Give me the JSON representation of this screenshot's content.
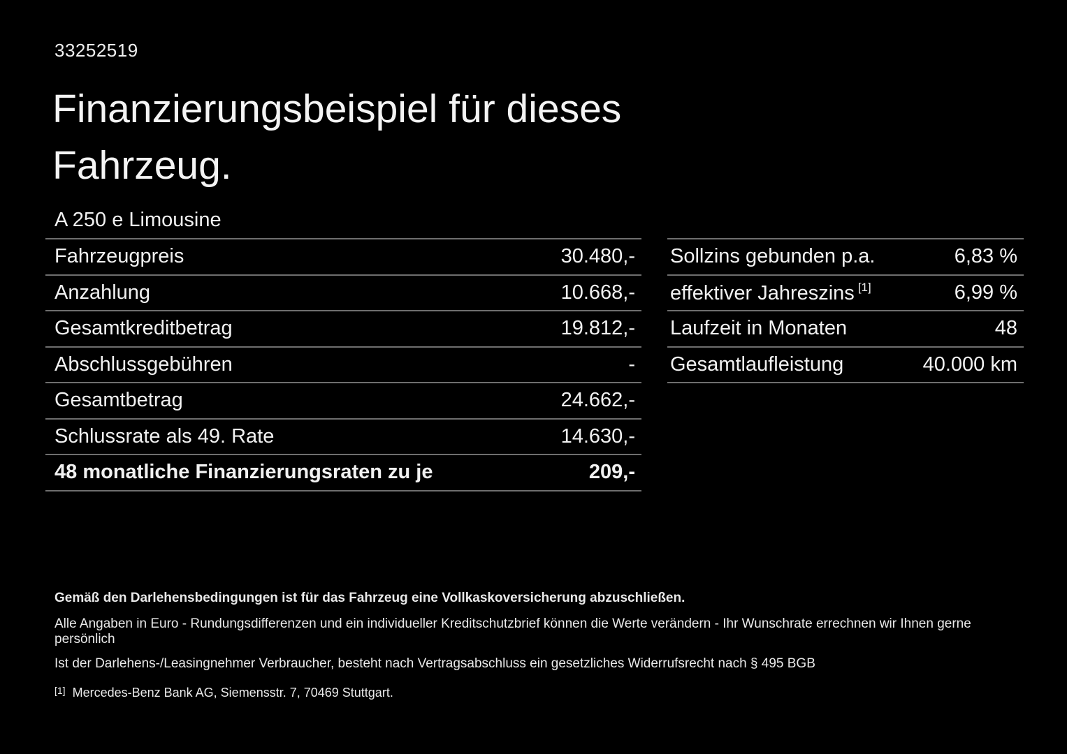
{
  "doc_id": "33252519",
  "title": "Finanzierungsbeispiel für dieses Fahrzeug.",
  "vehicle_model": "A 250 e Limousine",
  "left_table": {
    "rows": [
      {
        "label": "Fahrzeugpreis",
        "value": "30.480,-"
      },
      {
        "label": "Anzahlung",
        "value": "10.668,-"
      },
      {
        "label": "Gesamtkreditbetrag",
        "value": "19.812,-"
      },
      {
        "label": "Abschlussgebühren",
        "value": "-"
      },
      {
        "label": "Gesamtbetrag",
        "value": "24.662,-"
      },
      {
        "label": "Schlussrate als 49. Rate",
        "value": "14.630,-"
      },
      {
        "label": "48 monatliche Finanzierungsraten zu je",
        "value": "209,-"
      }
    ]
  },
  "right_table": {
    "rows": [
      {
        "label": "Sollzins gebunden p.a.",
        "sup": "",
        "value": "6,83 %"
      },
      {
        "label": "effektiver Jahreszins",
        "sup": "[1]",
        "value": "6,99 %"
      },
      {
        "label": "Laufzeit in Monaten",
        "sup": "",
        "value": "48"
      },
      {
        "label": "Gesamtlaufleistung",
        "sup": "",
        "value": "40.000 km"
      }
    ]
  },
  "footer": {
    "bold_line": "Gemäß den Darlehensbedingungen ist für das Fahrzeug eine Vollkaskoversicherung abzuschließen.",
    "line2": "Alle Angaben in Euro - Rundungsdifferenzen und ein individueller Kreditschutzbrief können die Werte verändern - Ihr Wunschrate errechnen wir Ihnen gerne persönlich",
    "line3": "Ist der Darlehens-/Leasingnehmer Verbraucher, besteht nach Vertragsabschluss ein gesetzliches Widerrufsrecht nach § 495 BGB",
    "footnote_marker": "[1]",
    "footnote_text": "Mercedes-Benz Bank AG, Siemensstr. 7, 70469 Stuttgart."
  },
  "colors": {
    "background": "#000000",
    "text": "#f1f1f1",
    "divider": "#6e6e6e"
  }
}
